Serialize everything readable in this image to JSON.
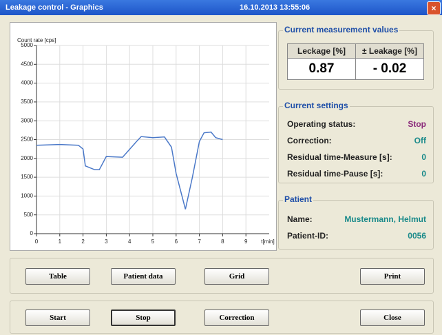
{
  "window": {
    "title": "Leakage control - Graphics",
    "datetime": "16.10.2013 13:55:06"
  },
  "chart_data": {
    "type": "line",
    "y_label": "Count rate [cps]",
    "x_label": "t[min]",
    "x": [
      0,
      1,
      1.8,
      2,
      2.1,
      2.5,
      2.7,
      3,
      3.7,
      4.3,
      4.5,
      5,
      5.5,
      5.8,
      6,
      6.4,
      6.7,
      7,
      7.2,
      7.5,
      7.7,
      8
    ],
    "series": [
      {
        "color": "#4a78c8",
        "values": [
          2350,
          2370,
          2350,
          2250,
          1800,
          1700,
          1700,
          2050,
          2030,
          2450,
          2580,
          2550,
          2570,
          2300,
          1600,
          650,
          1500,
          2450,
          2680,
          2700,
          2550,
          2500
        ]
      }
    ],
    "xlim": [
      0,
      10
    ],
    "ylim": [
      0,
      5000
    ],
    "xticks": [
      0,
      1,
      2,
      3,
      4,
      5,
      6,
      7,
      8,
      9
    ],
    "yticks": [
      0,
      500,
      1000,
      1500,
      2000,
      2500,
      3000,
      3500,
      4000,
      4500,
      5000
    ],
    "grid": true
  },
  "measurement": {
    "title": "Current measurement values",
    "headers": [
      "Leckage [%]",
      "± Leakage [%]"
    ],
    "values": [
      "0.87",
      "- 0.02"
    ]
  },
  "settings": {
    "title": "Current settings",
    "rows": [
      {
        "label": "Operating status:",
        "value": "Stop"
      },
      {
        "label": "Correction:",
        "value": "Off"
      },
      {
        "label": "Residual time-Measure [s]:",
        "value": "0"
      },
      {
        "label": "Residual time-Pause [s]:",
        "value": "0"
      }
    ]
  },
  "patient": {
    "title": "Patient",
    "rows": [
      {
        "label": "Name:",
        "value": "Mustermann, Helmut"
      },
      {
        "label": "Patient-ID:",
        "value": "0056"
      }
    ]
  },
  "buttons": [
    [
      "Table",
      "Patient data",
      "Grid",
      "Print"
    ],
    [
      "Start",
      "Stop",
      "Correction",
      "Close"
    ]
  ]
}
